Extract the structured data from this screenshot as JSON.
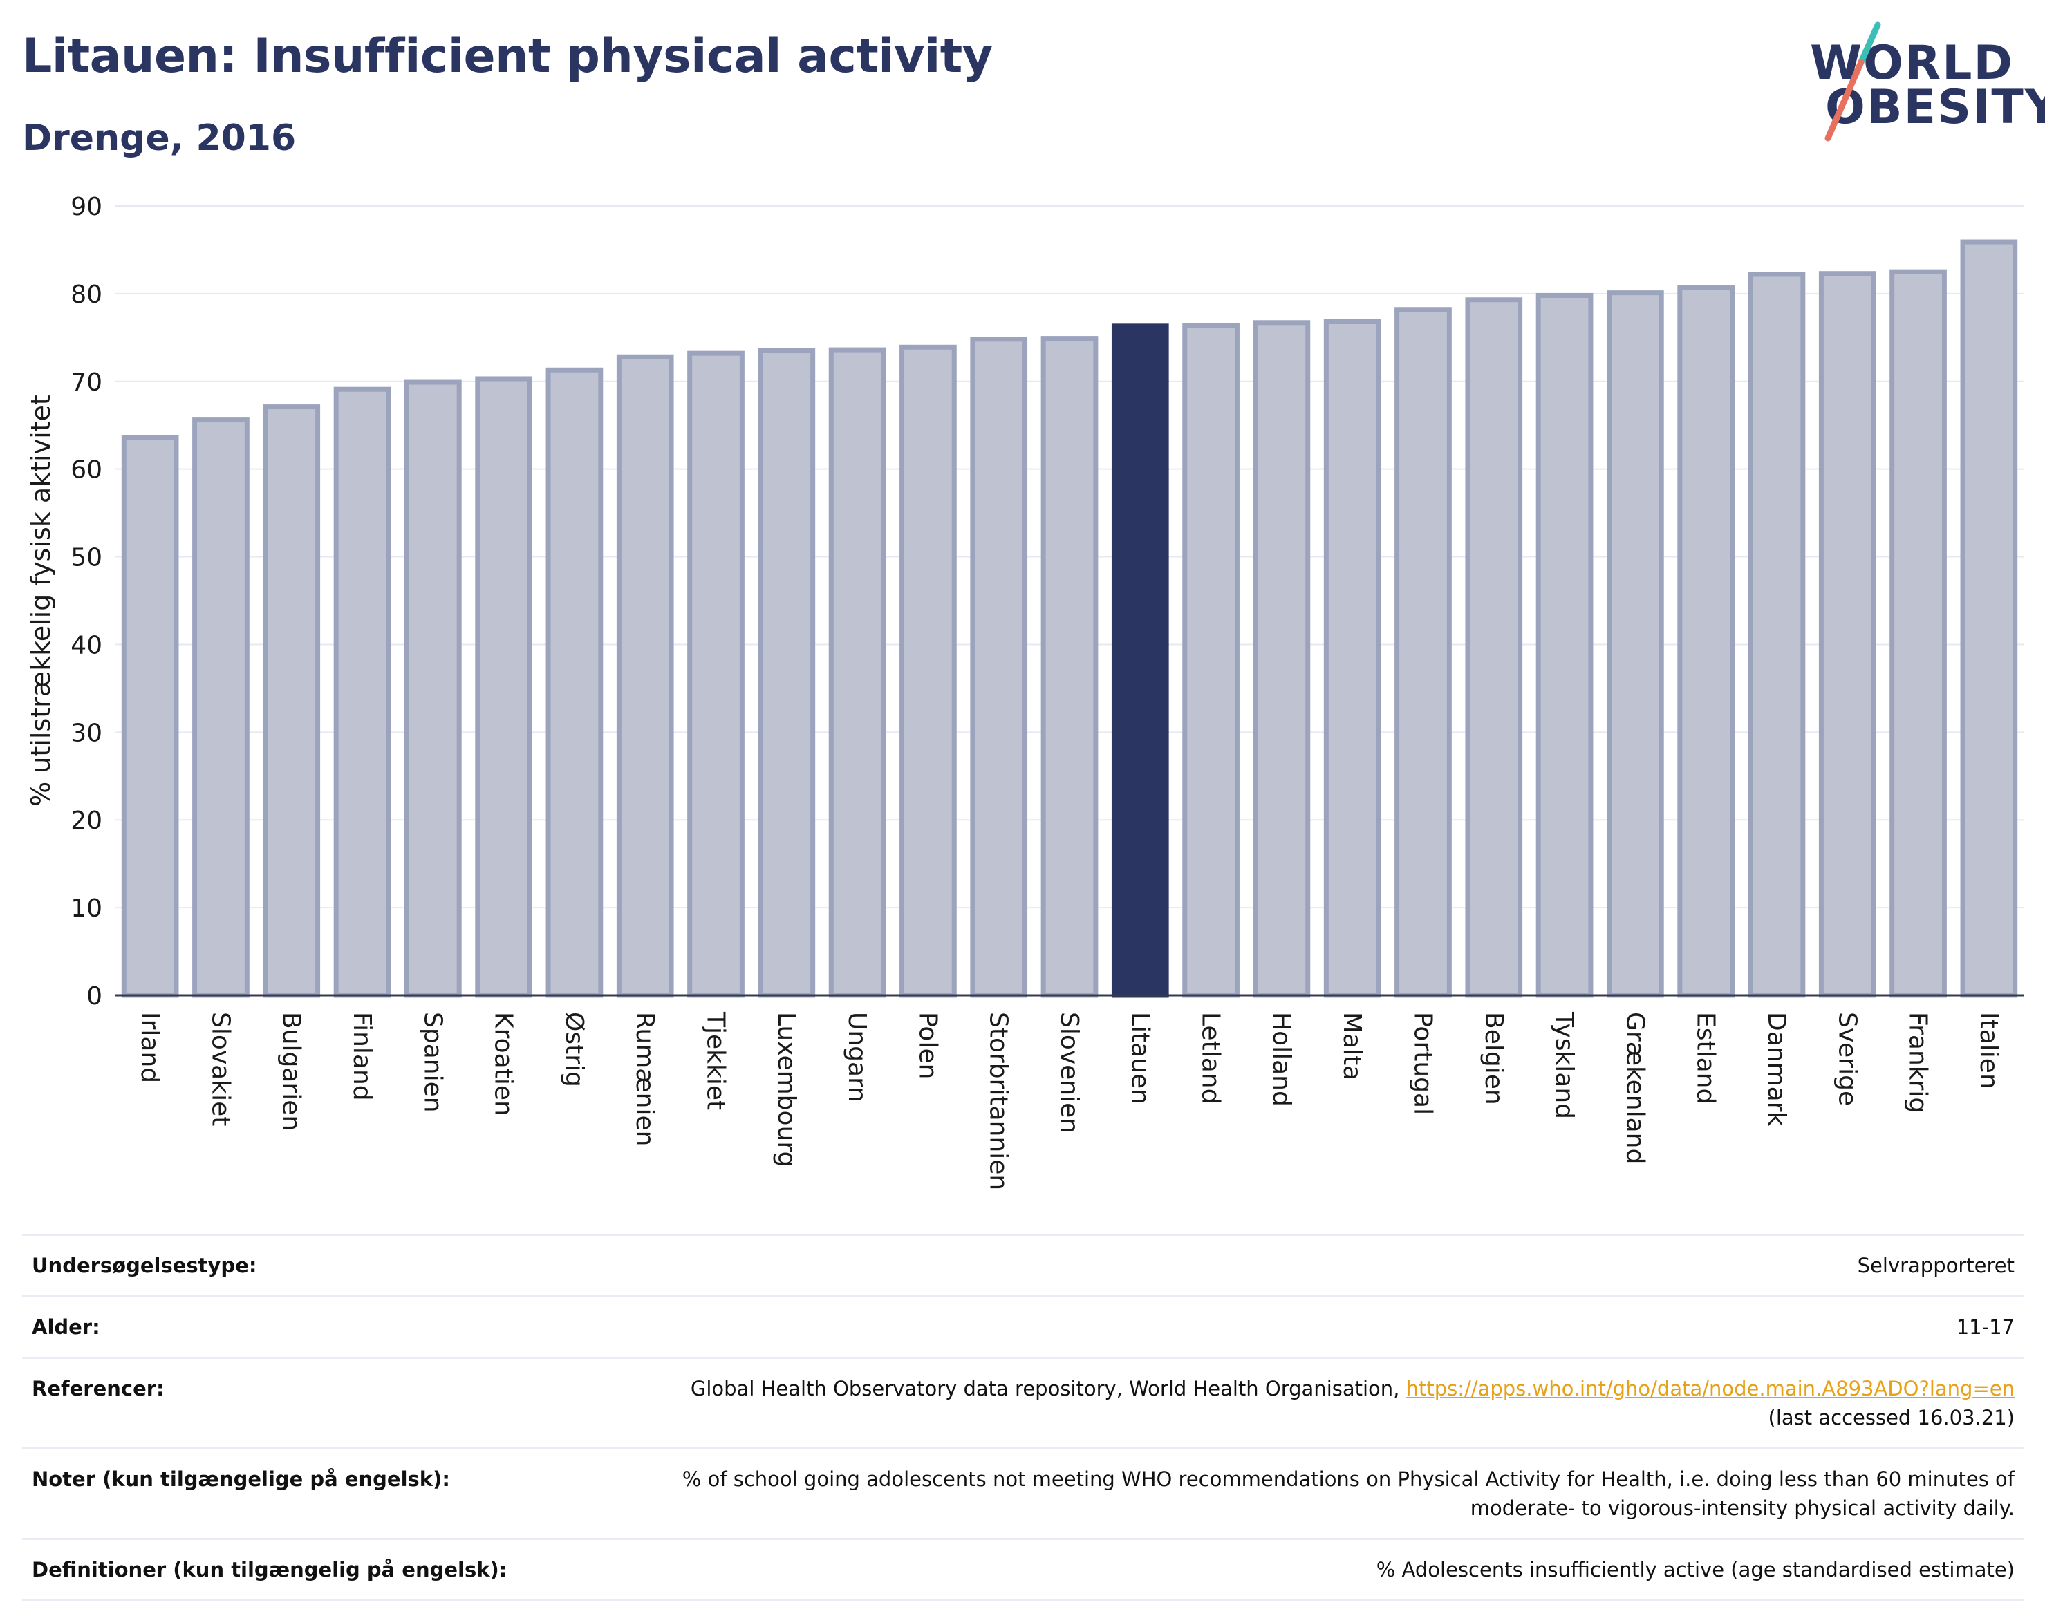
{
  "header": {
    "title": "Litauen: Insufficient physical activity",
    "subtitle": "Drenge, 2016"
  },
  "logo": {
    "line1": "WORLD",
    "line2": "OBESITY",
    "colors": {
      "text": "#2a3562",
      "slash_top": "#3dbfb8",
      "slash_bottom": "#e8705f"
    }
  },
  "chart_data": {
    "type": "bar",
    "ylabel": "% utilstrækkelig fysisk aktivitet",
    "ylim": [
      0,
      90
    ],
    "yticks": [
      0,
      10,
      20,
      30,
      40,
      50,
      60,
      70,
      80,
      90
    ],
    "grid": true,
    "highlight": "Litauen",
    "colors": {
      "bar": "#bfc3d1",
      "bar_edge": "#9ca3bd",
      "highlight": "#2a3562"
    },
    "categories": [
      "Irland",
      "Slovakiet",
      "Bulgarien",
      "Finland",
      "Spanien",
      "Kroatien",
      "Østrig",
      "Rumænien",
      "Tjekkiet",
      "Luxembourg",
      "Ungarn",
      "Polen",
      "Storbritannien",
      "Slovenien",
      "Litauen",
      "Letland",
      "Holland",
      "Malta",
      "Portugal",
      "Belgien",
      "Tyskland",
      "Grækenland",
      "Estland",
      "Danmark",
      "Sverige",
      "Frankrig",
      "Italien"
    ],
    "values": [
      63.6,
      65.6,
      67.1,
      69.1,
      69.9,
      70.3,
      71.3,
      72.8,
      73.2,
      73.5,
      73.6,
      73.9,
      74.8,
      74.9,
      76.3,
      76.4,
      76.7,
      76.8,
      78.2,
      79.3,
      79.8,
      80.1,
      80.7,
      82.2,
      82.3,
      82.5,
      85.9
    ]
  },
  "info": {
    "survey_type": {
      "label": "Undersøgelsestype:",
      "value": "Selvrapporteret"
    },
    "age": {
      "label": "Alder:",
      "value": "11-17"
    },
    "references": {
      "label": "Referencer:",
      "text": "Global Health Observatory data repository, World Health Organisation,",
      "link": "https://apps.who.int/gho/data/node.main.A893ADO?lang=en",
      "accessed": "(last accessed 16.03.21)"
    },
    "notes": {
      "label": "Noter (kun tilgængelige på engelsk):",
      "line1": "% of school going adolescents not meeting WHO recommendations on Physical Activity for Health, i.e. doing less than 60 minutes of",
      "line2": "moderate- to vigorous-intensity physical activity daily."
    },
    "definitions": {
      "label": "Definitioner (kun tilgængelig på engelsk):",
      "value": "% Adolescents insufficiently active (age standardised estimate)"
    }
  }
}
